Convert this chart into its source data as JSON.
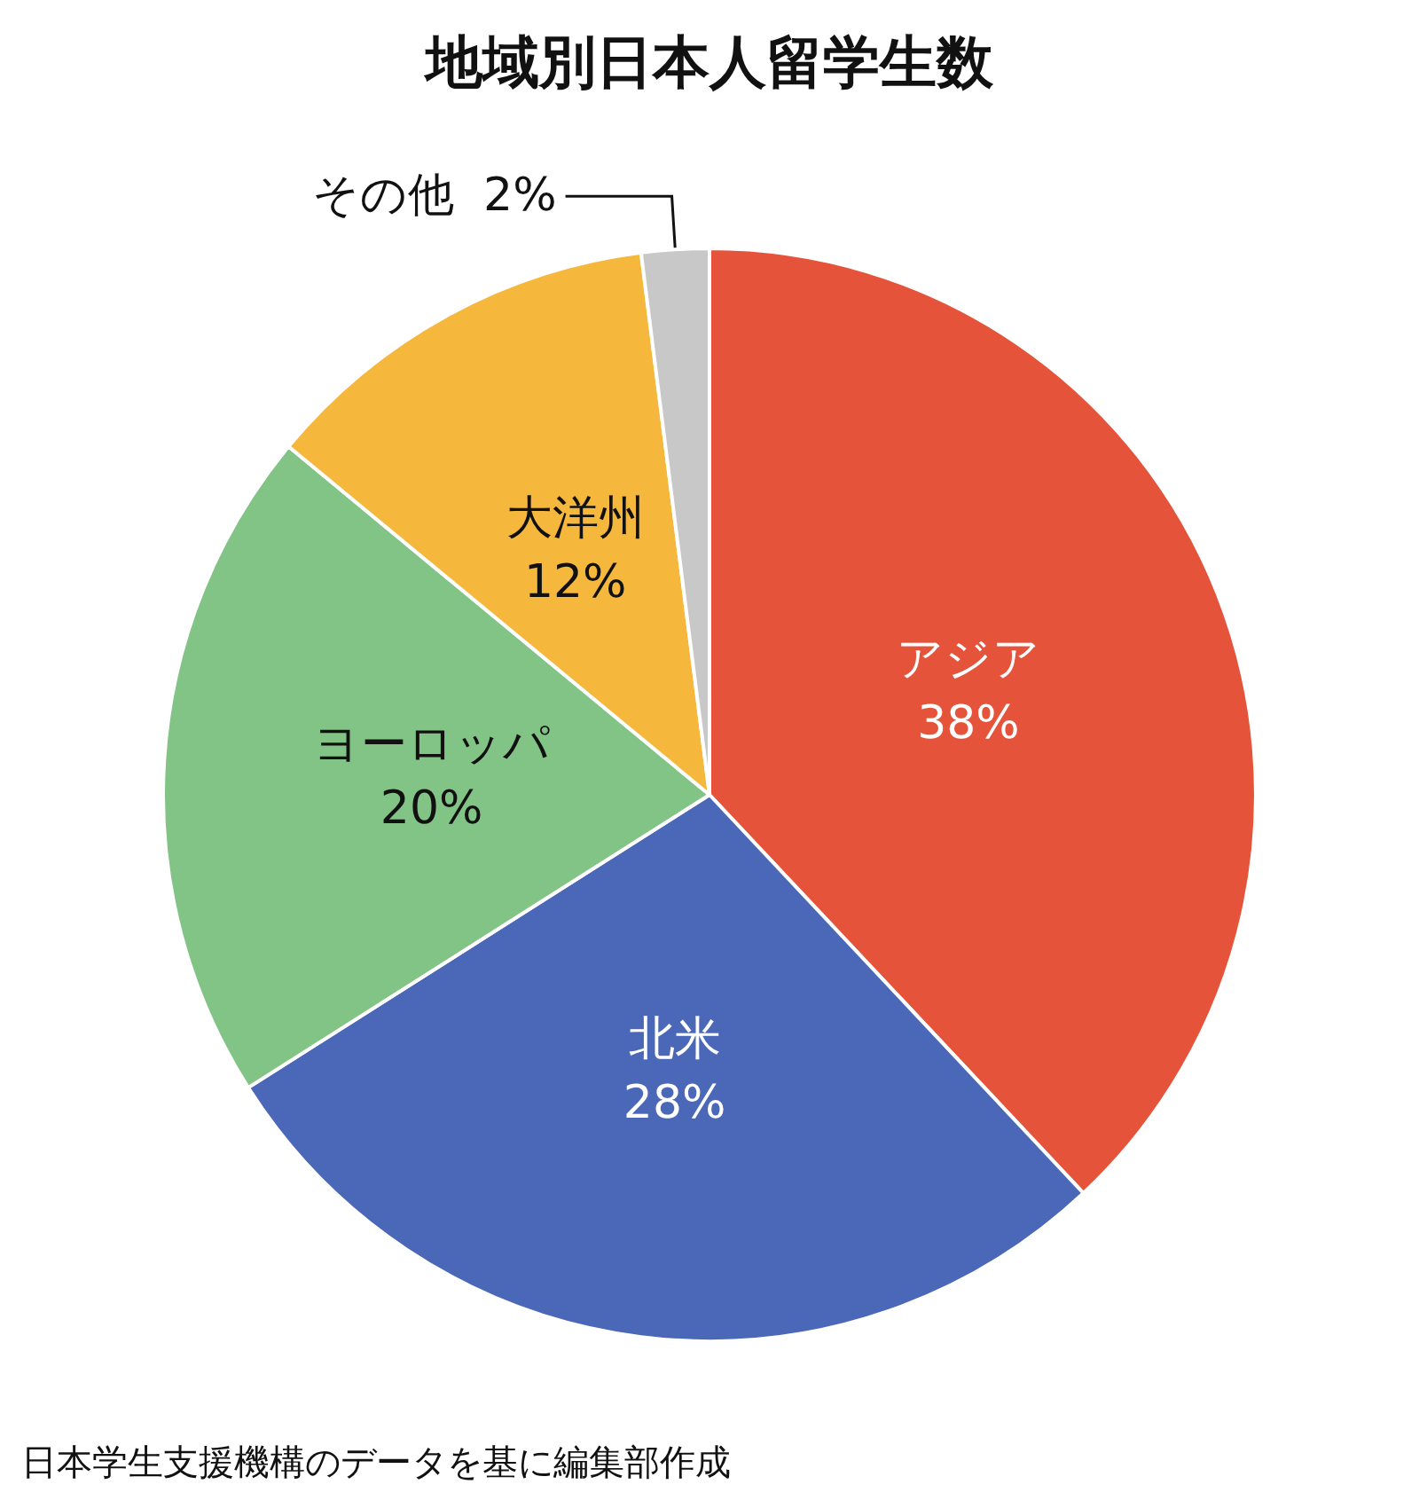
{
  "chart_data": {
    "type": "pie",
    "title": "地域別日本人留学生数",
    "categories": [
      "アジア",
      "北米",
      "ヨーロッパ",
      "大洋州",
      "その他"
    ],
    "values": [
      38,
      28,
      20,
      12,
      2
    ],
    "colors": [
      "#e5533a",
      "#4a67b8",
      "#82c386",
      "#f5b73c",
      "#c8c8c8"
    ],
    "value_labels": [
      "38%",
      "28%",
      "20%",
      "12%",
      "2%"
    ],
    "legend": false,
    "annotations": [
      "日本学生支援機構のデータを基に編集部作成"
    ]
  }
}
